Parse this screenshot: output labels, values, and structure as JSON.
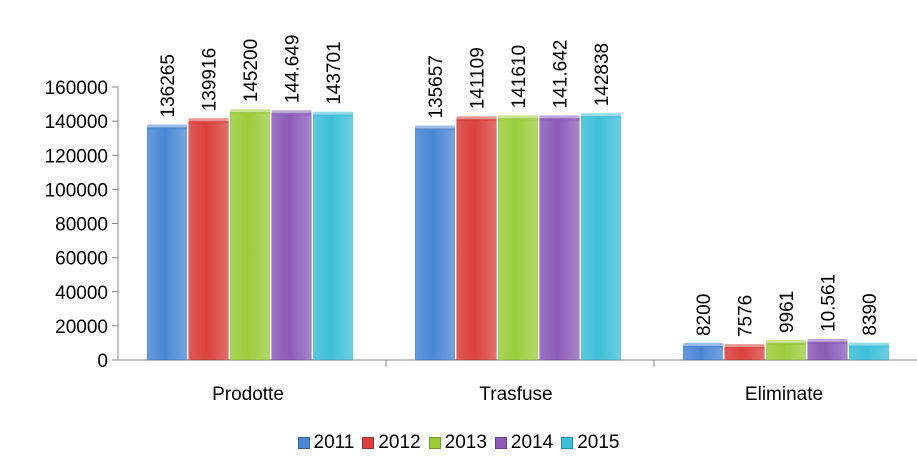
{
  "chart_data": {
    "type": "bar",
    "categories": [
      "Prodotte",
      "Trasfuse",
      "Eliminate"
    ],
    "series": [
      {
        "name": "2011",
        "color": "#4a86d4",
        "values": [
          136265,
          135657,
          8200
        ],
        "labels": [
          "136265",
          "135657",
          "8200"
        ]
      },
      {
        "name": "2012",
        "color": "#d9403b",
        "values": [
          139916,
          141109,
          7576
        ],
        "labels": [
          "139916",
          "141109",
          "7576"
        ]
      },
      {
        "name": "2013",
        "color": "#9ccc3c",
        "values": [
          145200,
          141610,
          9961
        ],
        "labels": [
          "145200",
          "141610",
          "9961"
        ]
      },
      {
        "name": "2014",
        "color": "#8a5cb8",
        "values": [
          144649,
          141642,
          10561
        ],
        "labels": [
          "144.649",
          "141.642",
          "10.561"
        ]
      },
      {
        "name": "2015",
        "color": "#3ebfd8",
        "values": [
          143701,
          142838,
          8390
        ],
        "labels": [
          "143701",
          "142838",
          "8390"
        ]
      }
    ],
    "yticks": [
      "0",
      "20000",
      "40000",
      "60000",
      "80000",
      "100000",
      "120000",
      "140000",
      "160000"
    ],
    "ylim": [
      0,
      160000
    ],
    "legend_position": "bottom",
    "grid": false
  }
}
